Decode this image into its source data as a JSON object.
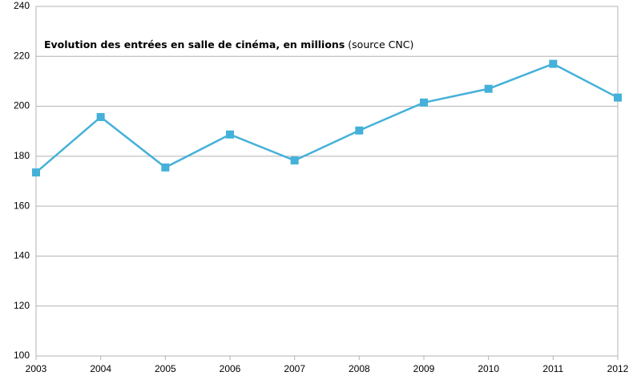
{
  "chart_data": {
    "type": "line",
    "title": "Evolution des entrées en salle de cinéma, en millions",
    "subtitle": "(source CNC)",
    "categories": [
      "2003",
      "2004",
      "2005",
      "2006",
      "2007",
      "2008",
      "2009",
      "2010",
      "2011",
      "2012"
    ],
    "values": [
      173.5,
      195.7,
      175.5,
      188.7,
      178.3,
      190.3,
      201.5,
      207,
      217,
      203.5
    ],
    "color": "#45b1d9",
    "ylim": [
      100,
      240
    ],
    "yticks": [
      100,
      120,
      140,
      160,
      180,
      200,
      220,
      240
    ],
    "grid": true
  }
}
